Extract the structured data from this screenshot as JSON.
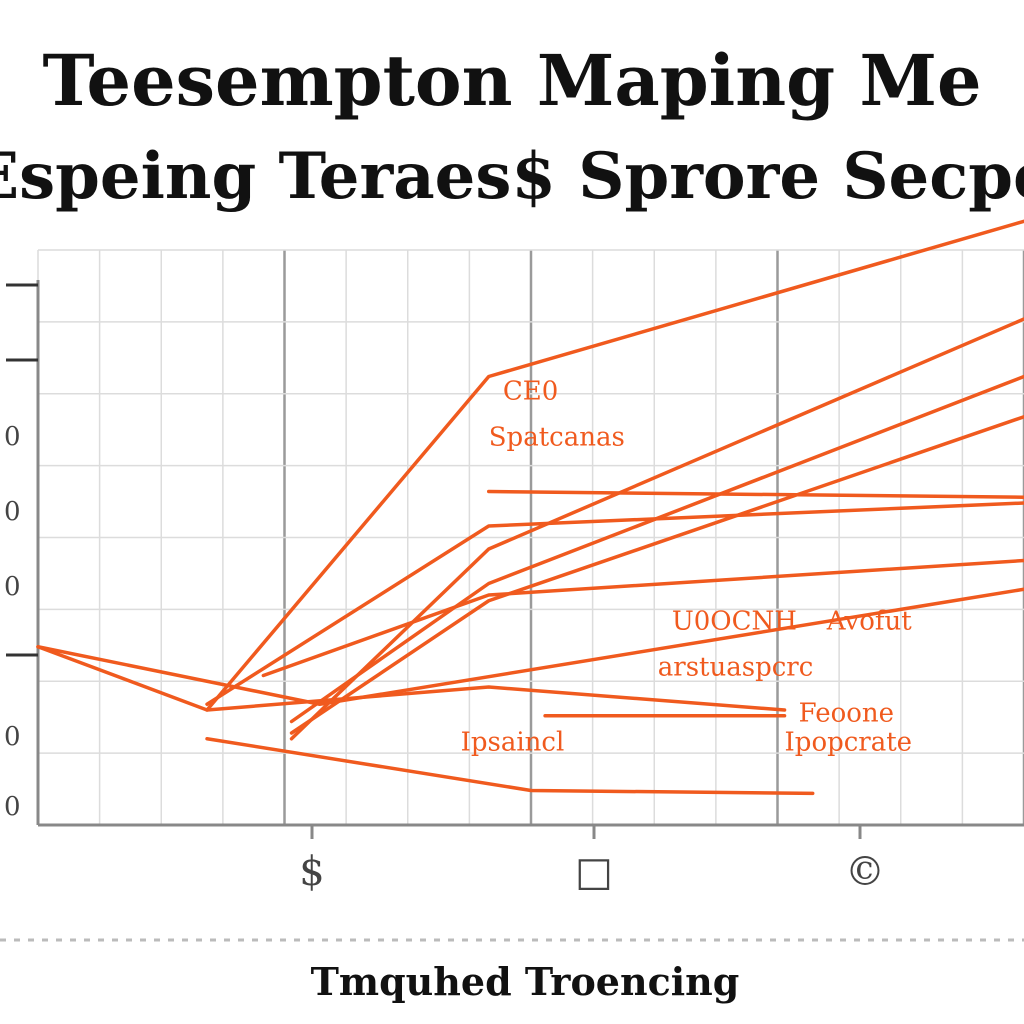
{
  "chart_data": {
    "type": "line",
    "title_line1": "Teesempton Maping Me",
    "title_line2": "Espeing Teraes$ Sprore Secpe",
    "xlabel": "Tmquhed Troencing",
    "x_tick_labels": [
      "$",
      "□",
      "©"
    ],
    "y_tick_labels": [
      "0",
      "0",
      "0",
      "0",
      "0"
    ],
    "x": [
      0,
      1,
      2,
      3,
      4,
      5,
      6,
      7
    ],
    "xlim": [
      0,
      7
    ],
    "ylim": [
      0,
      10
    ],
    "grid": true,
    "legend": "none",
    "line_color": "#f05a1e",
    "series": [
      {
        "x": [
          0,
          1.2,
          3.2,
          7
        ],
        "values": [
          3.1,
          2.0,
          7.8,
          10.5
        ]
      },
      {
        "x": [
          1.8,
          3.2,
          7
        ],
        "values": [
          1.5,
          4.8,
          8.8
        ]
      },
      {
        "x": [
          1.8,
          3.2,
          7
        ],
        "values": [
          1.6,
          3.9,
          7.1
        ]
      },
      {
        "x": [
          1.8,
          3.2,
          7
        ],
        "values": [
          1.8,
          4.2,
          7.8
        ]
      },
      {
        "x": [
          1.2,
          3.2,
          7
        ],
        "values": [
          2.1,
          5.2,
          5.6
        ]
      },
      {
        "x": [
          1.6,
          3.2,
          7
        ],
        "values": [
          2.6,
          4.0,
          4.6
        ]
      },
      {
        "x": [
          0,
          2.0,
          7
        ],
        "values": [
          3.1,
          2.1,
          4.1
        ]
      },
      {
        "x": [
          1.2,
          3.2,
          5.3
        ],
        "values": [
          2.0,
          2.4,
          2.0
        ]
      },
      {
        "x": [
          1.2,
          3.5,
          5.5
        ],
        "values": [
          1.5,
          0.6,
          0.55
        ]
      },
      {
        "x": [
          3.2,
          7
        ],
        "values": [
          5.8,
          5.7
        ]
      },
      {
        "x": [
          3.6,
          5.3
        ],
        "values": [
          1.9,
          1.9
        ]
      }
    ],
    "annotations": [
      {
        "text": "CE0",
        "x": 3.3,
        "y": 7.4
      },
      {
        "text": "Spatcanas",
        "x": 3.2,
        "y": 6.6
      },
      {
        "text": "U0OCNH",
        "x": 4.5,
        "y": 3.4
      },
      {
        "text": "Avofut",
        "x": 5.6,
        "y": 3.4
      },
      {
        "text": "arstuaspcrc",
        "x": 4.4,
        "y": 2.6
      },
      {
        "text": "Feoone",
        "x": 5.4,
        "y": 1.8
      },
      {
        "text": "Ipsaincl",
        "x": 3.0,
        "y": 1.3
      },
      {
        "text": "Ipopcrate",
        "x": 5.3,
        "y": 1.3
      }
    ]
  }
}
